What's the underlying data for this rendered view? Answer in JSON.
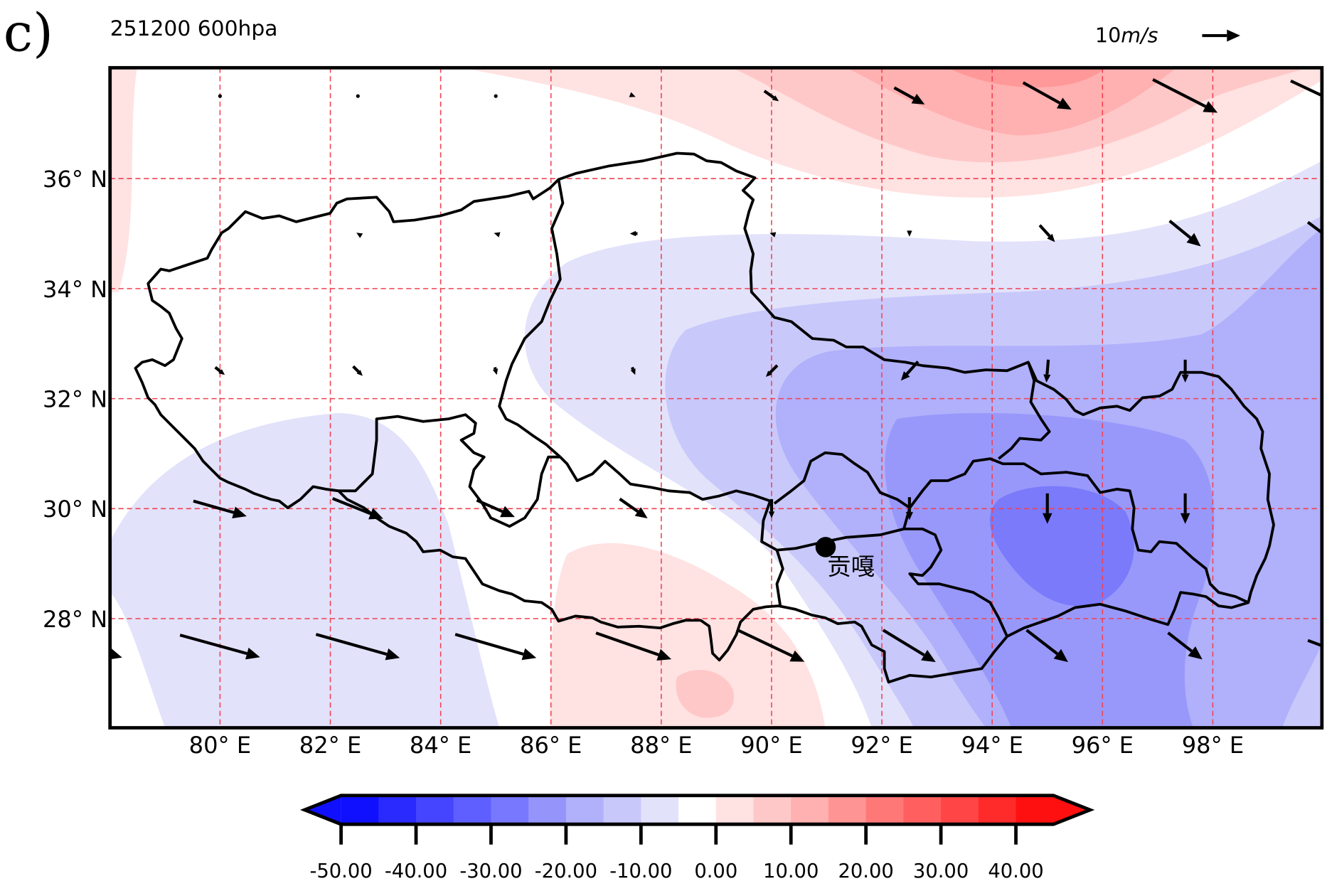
{
  "panel_label": "c)",
  "title": "251200  600hpa",
  "reference_vector": {
    "label_num": "10",
    "label_unit": "m/s",
    "speed": 10
  },
  "station": {
    "name": "贡嘎",
    "lon": 90.98,
    "lat": 29.3
  },
  "chart_data": {
    "type": "heatmap",
    "subtype": "filled contour with wind vectors",
    "title": "251200  600hpa",
    "xlim": [
      78,
      100
    ],
    "ylim": [
      26,
      38
    ],
    "x_ticks": [
      80,
      82,
      84,
      86,
      88,
      90,
      92,
      94,
      96,
      98
    ],
    "x_tick_labels": [
      "80° E",
      "82° E",
      "84° E",
      "86° E",
      "88° E",
      "90° E",
      "92° E",
      "94° E",
      "96° E",
      "98° E"
    ],
    "y_ticks": [
      28,
      30,
      32,
      34,
      36
    ],
    "y_tick_labels": [
      "28° N",
      "30° N",
      "32° N",
      "34° N",
      "36° N"
    ],
    "grid": true,
    "colorbar": {
      "levels": [
        -50,
        -45,
        -40,
        -35,
        -30,
        -25,
        -20,
        -15,
        -10,
        -5,
        0,
        5,
        10,
        15,
        20,
        25,
        30,
        35,
        40,
        45
      ],
      "colors": [
        "#1010ff",
        "#2a2aff",
        "#4545ff",
        "#5f5fff",
        "#7878ff",
        "#9494fb",
        "#b0b0fb",
        "#c8c8fb",
        "#e2e2fb",
        "#ffffff",
        "#ffe2e2",
        "#ffc8c8",
        "#ffb0b0",
        "#ff9494",
        "#ff7878",
        "#ff5f5f",
        "#ff4545",
        "#ff2a2a",
        "#ff1010"
      ],
      "tick_values": [
        -50,
        -40,
        -30,
        -20,
        -10,
        0,
        10,
        20,
        30,
        40
      ],
      "tick_labels": [
        "-50.00",
        "-40.00",
        "-30.00",
        "-20.00",
        "-10.00",
        "0.00",
        "10.00",
        "20.00",
        "30.00",
        "40.00"
      ],
      "extend": "both",
      "placement": "bottom"
    },
    "contour_regions": [
      {
        "level_range": [
          0,
          5
        ],
        "area": "northern band 86-100E"
      },
      {
        "level_range": [
          5,
          10
        ],
        "area": "north 90-98E"
      },
      {
        "level_range": [
          10,
          15
        ],
        "area": "north 92-96E"
      },
      {
        "level_range": [
          15,
          20
        ],
        "area": "north ~95E near 38N"
      },
      {
        "level_range": [
          -10,
          -5
        ],
        "area": "central/east and southwest"
      },
      {
        "level_range": [
          -15,
          -10
        ],
        "area": "east of 88E"
      },
      {
        "level_range": [
          -20,
          -15
        ],
        "area": "east of 90E"
      },
      {
        "level_range": [
          -25,
          -20
        ],
        "area": "92-98E, 28-31N"
      },
      {
        "level_range": [
          -30,
          -25
        ],
        "area": "94-96E, 28.5-30.5N"
      },
      {
        "level_range": [
          0,
          5
        ],
        "area": "south 86-91E"
      },
      {
        "level_range": [
          5,
          10
        ],
        "area": "~88.5E, 26.8N"
      }
    ],
    "wind_vectors": [
      {
        "lon": 80,
        "lat": 37.5,
        "u": 0.2,
        "v": 0
      },
      {
        "lon": 82.5,
        "lat": 37.5,
        "u": 0.2,
        "v": 0
      },
      {
        "lon": 85,
        "lat": 37.5,
        "u": 0.2,
        "v": 0
      },
      {
        "lon": 87.5,
        "lat": 37.5,
        "u": 1,
        "v": -0.4
      },
      {
        "lon": 90,
        "lat": 37.5,
        "u": 3.8,
        "v": -2.7
      },
      {
        "lon": 92.5,
        "lat": 37.5,
        "u": 8,
        "v": -4.4
      },
      {
        "lon": 95,
        "lat": 37.5,
        "u": 12.7,
        "v": -7.1
      },
      {
        "lon": 97.5,
        "lat": 37.5,
        "u": 17,
        "v": -8.7
      },
      {
        "lon": 100,
        "lat": 37.5,
        "u": 17,
        "v": -8
      },
      {
        "lon": 82.5,
        "lat": 35,
        "u": -0.8,
        "v": 0.5
      },
      {
        "lon": 85,
        "lat": 35,
        "u": -1,
        "v": 0.3
      },
      {
        "lon": 87.5,
        "lat": 35,
        "u": -2,
        "v": 0
      },
      {
        "lon": 90,
        "lat": 35,
        "u": -1,
        "v": 0.3
      },
      {
        "lon": 92.5,
        "lat": 35,
        "u": 0,
        "v": -1.6
      },
      {
        "lon": 95,
        "lat": 35,
        "u": 4,
        "v": -4.4
      },
      {
        "lon": 97.5,
        "lat": 35,
        "u": 8.2,
        "v": -6.7
      },
      {
        "lon": 100,
        "lat": 35,
        "u": 8,
        "v": -6
      },
      {
        "lon": 80,
        "lat": 32.5,
        "u": 2.5,
        "v": -2
      },
      {
        "lon": 82.5,
        "lat": 32.5,
        "u": 2.5,
        "v": -2.5
      },
      {
        "lon": 85,
        "lat": 32.5,
        "u": 0.5,
        "v": -2
      },
      {
        "lon": 87.5,
        "lat": 32.5,
        "u": 0.8,
        "v": -2
      },
      {
        "lon": 90,
        "lat": 32.5,
        "u": -3,
        "v": -3
      },
      {
        "lon": 92.5,
        "lat": 32.5,
        "u": -4.5,
        "v": -5
      },
      {
        "lon": 95,
        "lat": 32.5,
        "u": -0.5,
        "v": -6
      },
      {
        "lon": 97.5,
        "lat": 32.5,
        "u": 0,
        "v": -6
      },
      {
        "lon": 100,
        "lat": 32.5,
        "u": 0,
        "v": -5
      },
      {
        "lon": 80,
        "lat": 30,
        "u": 14,
        "v": -4
      },
      {
        "lon": 82.5,
        "lat": 30,
        "u": 13.3,
        "v": -5.3
      },
      {
        "lon": 85,
        "lat": 30,
        "u": 10,
        "v": -4.4
      },
      {
        "lon": 87.5,
        "lat": 30,
        "u": 7.3,
        "v": -5.1
      },
      {
        "lon": 90,
        "lat": 30,
        "u": 0,
        "v": -5
      },
      {
        "lon": 92.5,
        "lat": 30,
        "u": 0,
        "v": -6
      },
      {
        "lon": 95,
        "lat": 30,
        "u": 0,
        "v": -8
      },
      {
        "lon": 97.5,
        "lat": 30,
        "u": 0,
        "v": -8
      },
      {
        "lon": 100,
        "lat": 30,
        "u": 0,
        "v": -5
      },
      {
        "lon": 77.5,
        "lat": 27.5,
        "u": 21,
        "v": -6
      },
      {
        "lon": 80,
        "lat": 27.5,
        "u": 21,
        "v": -5.8
      },
      {
        "lon": 82.5,
        "lat": 27.5,
        "u": 22,
        "v": -6.2
      },
      {
        "lon": 85,
        "lat": 27.5,
        "u": 21.3,
        "v": -6.2
      },
      {
        "lon": 87.5,
        "lat": 27.5,
        "u": 19.8,
        "v": -6.9
      },
      {
        "lon": 90,
        "lat": 27.5,
        "u": 17.3,
        "v": -8.2
      },
      {
        "lon": 92.5,
        "lat": 27.5,
        "u": 13.8,
        "v": -8.4
      },
      {
        "lon": 95,
        "lat": 27.5,
        "u": 10.9,
        "v": -8.4
      },
      {
        "lon": 97.5,
        "lat": 27.5,
        "u": 9,
        "v": -7
      },
      {
        "lon": 100,
        "lat": 27.5,
        "u": 8,
        "v": -3
      }
    ]
  }
}
